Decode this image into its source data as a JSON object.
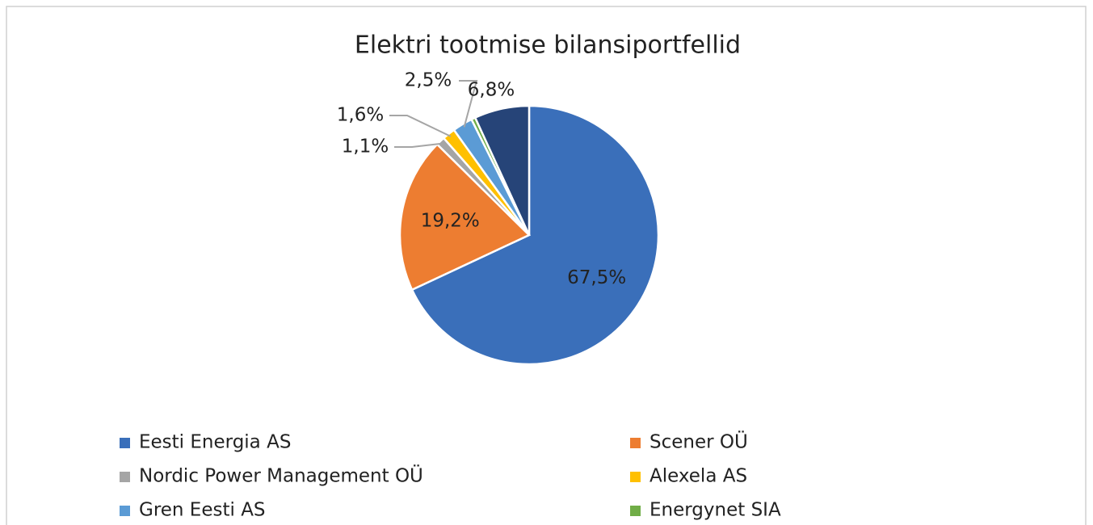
{
  "chart_data": {
    "type": "pie",
    "title": "Elektri tootmise bilansiportfellid",
    "categories": [
      "Eesti Energia AS",
      "Scener OÜ",
      "Nordic Power Management OÜ",
      "Alexela AS",
      "Gren Eesti AS",
      "Energynet SIA",
      null
    ],
    "values": [
      67.5,
      19.2,
      1.1,
      1.6,
      2.5,
      0.5,
      6.8
    ],
    "value_labels": [
      "67,5%",
      "19,2%",
      "1,1%",
      "1,6%",
      "2,5%",
      null,
      "6,8%"
    ],
    "colors": [
      "#3a6fba",
      "#ed7d31",
      "#a5a5a5",
      "#ffc000",
      "#5b9bd5",
      "#70ad47",
      "#264478"
    ]
  }
}
